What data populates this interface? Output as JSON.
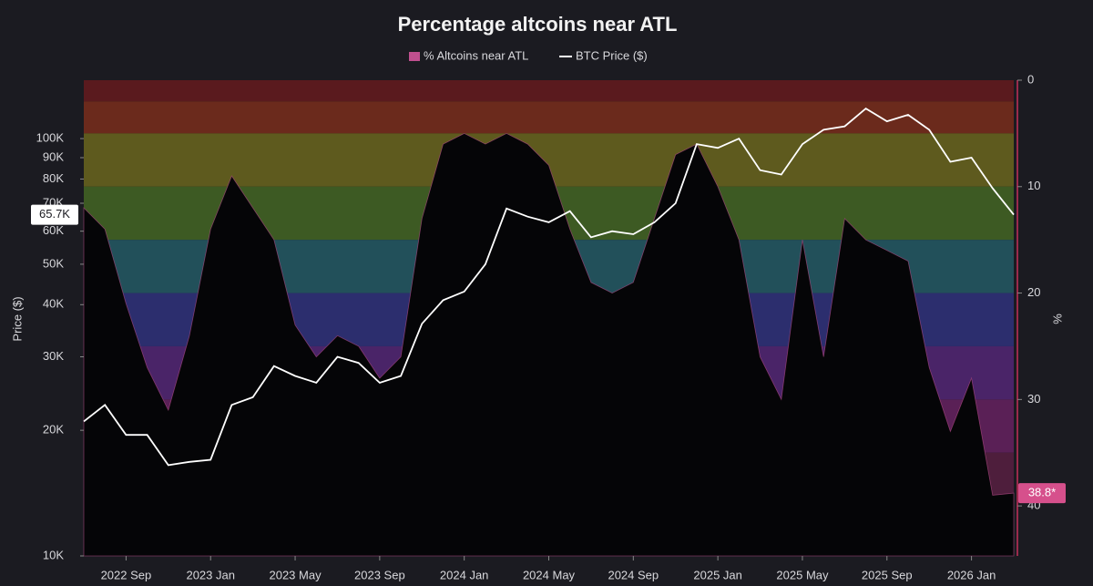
{
  "chart_data": {
    "type": "line",
    "title": "Percentage altcoins near ATL",
    "background": "#1b1b21",
    "x": [
      "2022-07",
      "2022-08",
      "2022-09",
      "2022-10",
      "2022-11",
      "2022-12",
      "2023-01",
      "2023-02",
      "2023-03",
      "2023-04",
      "2023-05",
      "2023-06",
      "2023-07",
      "2023-08",
      "2023-09",
      "2023-10",
      "2023-11",
      "2023-12",
      "2024-01",
      "2024-02",
      "2024-03",
      "2024-04",
      "2024-05",
      "2024-06",
      "2024-07",
      "2024-08",
      "2024-09",
      "2024-10",
      "2024-11",
      "2024-12",
      "2025-01",
      "2025-02",
      "2025-03",
      "2025-04",
      "2025-05",
      "2025-06",
      "2025-07",
      "2025-08",
      "2025-09",
      "2025-10",
      "2025-11",
      "2025-12",
      "2026-01",
      "2026-02",
      "2026-03"
    ],
    "series": [
      {
        "name": "% Altcoins near ATL",
        "color": "#c0508f",
        "axis": "y2",
        "fill": "#050507",
        "values": [
          12,
          14,
          21,
          27,
          31,
          24,
          14,
          9,
          12,
          15,
          23,
          26,
          24,
          25,
          28,
          26,
          13,
          6,
          5,
          6,
          5,
          6,
          8,
          14,
          19,
          20,
          19,
          13,
          7,
          6,
          10,
          15,
          26,
          30,
          15,
          26,
          13,
          15,
          16,
          17,
          27,
          33,
          28,
          39,
          38.8
        ]
      },
      {
        "name": "BTC Price ($)",
        "color": "#ffffff",
        "axis": "y",
        "values": [
          21000,
          23000,
          19500,
          19500,
          16500,
          16800,
          17000,
          23000,
          24000,
          28500,
          27000,
          26000,
          30000,
          29000,
          26000,
          27000,
          36000,
          41000,
          43000,
          50000,
          68000,
          65000,
          63000,
          67000,
          58000,
          60000,
          59000,
          63000,
          70000,
          97000,
          95000,
          100000,
          84000,
          82000,
          97000,
          105000,
          107000,
          118000,
          110000,
          114000,
          105000,
          88000,
          90000,
          76000,
          65700
        ]
      }
    ],
    "xlim": [
      "2022-07",
      "2026-03"
    ],
    "xticks": [
      {
        "value": "2022-09",
        "label": "2022 Sep"
      },
      {
        "value": "2023-01",
        "label": "2023 Jan"
      },
      {
        "value": "2023-05",
        "label": "2023 May"
      },
      {
        "value": "2023-09",
        "label": "2023 Sep"
      },
      {
        "value": "2024-01",
        "label": "2024 Jan"
      },
      {
        "value": "2024-05",
        "label": "2024 May"
      },
      {
        "value": "2024-09",
        "label": "2024 Sep"
      },
      {
        "value": "2025-01",
        "label": "2025 Jan"
      },
      {
        "value": "2025-05",
        "label": "2025 May"
      },
      {
        "value": "2025-09",
        "label": "2025 Sep"
      },
      {
        "value": "2026-01",
        "label": "2026 Jan"
      }
    ],
    "ylabel": "Price ($)",
    "y_log": true,
    "ylim": [
      10000,
      138000
    ],
    "yticks": [
      {
        "value": 10000,
        "label": "10K"
      },
      {
        "value": 20000,
        "label": "20K"
      },
      {
        "value": 30000,
        "label": "30K"
      },
      {
        "value": 40000,
        "label": "40K"
      },
      {
        "value": 50000,
        "label": "50K"
      },
      {
        "value": 60000,
        "label": "60K"
      },
      {
        "value": 70000,
        "label": "70K"
      },
      {
        "value": 80000,
        "label": "80K"
      },
      {
        "value": 90000,
        "label": "90K"
      },
      {
        "value": 100000,
        "label": "100K"
      }
    ],
    "y2label": "%",
    "y2_inverted": true,
    "y2lim": [
      0,
      44.7
    ],
    "y2ticks": [
      0,
      10,
      20,
      30,
      40
    ],
    "bands": [
      {
        "from": 0,
        "to": 2,
        "color": "#5a1a1e"
      },
      {
        "from": 2,
        "to": 5,
        "color": "#6b2a1c"
      },
      {
        "from": 5,
        "to": 10,
        "color": "#5e5a1e"
      },
      {
        "from": 10,
        "to": 15,
        "color": "#3d5a23"
      },
      {
        "from": 15,
        "to": 20,
        "color": "#22505a"
      },
      {
        "from": 20,
        "to": 25,
        "color": "#2c2e6e"
      },
      {
        "from": 25,
        "to": 30,
        "color": "#4a2468"
      },
      {
        "from": 30,
        "to": 35,
        "color": "#5a2056"
      },
      {
        "from": 35,
        "to": 40,
        "color": "#4e1e3c"
      },
      {
        "from": 40,
        "to": 44.7,
        "color": "#3a1a2c"
      }
    ],
    "badges": [
      {
        "value": 65700,
        "label": "65.7K",
        "axis": "y",
        "color": "#ffffff",
        "text_color": "#1b1b21"
      },
      {
        "value": 38.8,
        "label": "38.8*",
        "axis": "y2",
        "color": "#d6508c",
        "text_color": "#ffffff"
      }
    ]
  }
}
